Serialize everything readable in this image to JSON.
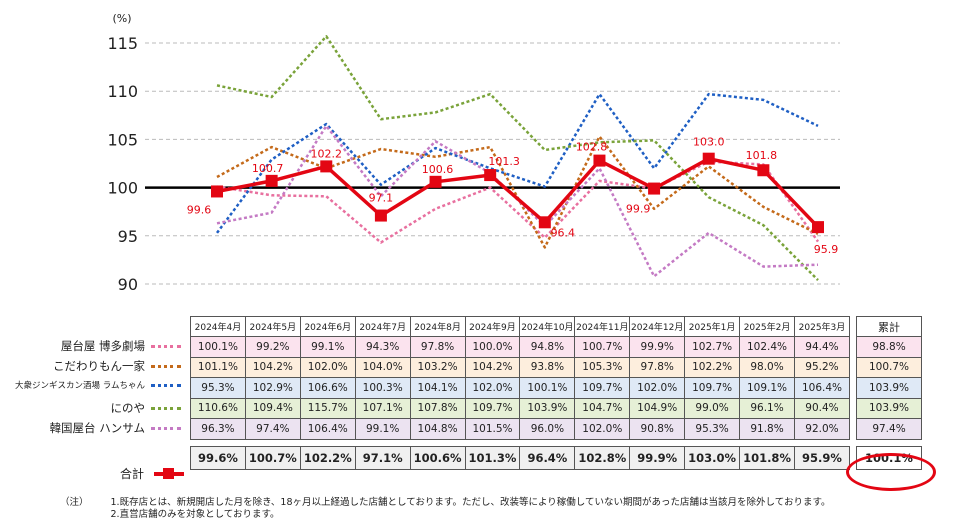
{
  "chart_data": {
    "type": "line",
    "ylabel_unit": "(%)",
    "ylim": [
      90,
      115
    ],
    "yticks": [
      90,
      95,
      100,
      105,
      110,
      115
    ],
    "baseline": 100,
    "categories": [
      "2024年4月",
      "2024年5月",
      "2024年6月",
      "2024年7月",
      "2024年8月",
      "2024年9月",
      "2024年10月",
      "2024年11月",
      "2024年12月",
      "2025年1月",
      "2025年2月",
      "2025年3月"
    ],
    "series": [
      {
        "name": "屋台屋 博多劇場",
        "color": "#e8709f",
        "style": "dotted",
        "values": [
          100.1,
          99.2,
          99.1,
          94.3,
          97.8,
          100.0,
          94.8,
          100.7,
          99.9,
          102.7,
          102.4,
          94.4
        ]
      },
      {
        "name": "こだわりもん一家",
        "color": "#c46a1a",
        "style": "dotted",
        "values": [
          101.1,
          104.2,
          102.0,
          104.0,
          103.2,
          104.2,
          93.8,
          105.3,
          97.8,
          102.2,
          98.0,
          95.2
        ]
      },
      {
        "name": "大衆ジンギスカン酒場 ラムちゃん",
        "color": "#1f5fc4",
        "style": "dotted",
        "values": [
          95.3,
          102.9,
          106.6,
          100.3,
          104.1,
          102.0,
          100.1,
          109.7,
          102.0,
          109.7,
          109.1,
          106.4
        ]
      },
      {
        "name": "にのや",
        "color": "#7aa33a",
        "style": "dotted",
        "values": [
          110.6,
          109.4,
          115.7,
          107.1,
          107.8,
          109.7,
          103.9,
          104.7,
          104.9,
          99.0,
          96.1,
          90.4
        ]
      },
      {
        "name": "韓国屋台 ハンサム",
        "color": "#c47ac4",
        "style": "dotted",
        "values": [
          96.3,
          97.4,
          106.4,
          99.1,
          104.8,
          101.5,
          96.0,
          102.0,
          90.8,
          95.3,
          91.8,
          92.0
        ]
      },
      {
        "name": "合計",
        "color": "#e30613",
        "style": "solid",
        "values": [
          99.6,
          100.7,
          102.2,
          97.1,
          100.6,
          101.3,
          96.4,
          102.8,
          99.9,
          103.0,
          101.8,
          95.9
        ]
      }
    ],
    "total_point_labels": [
      "99.6",
      "100.7",
      "102.2",
      "97.1",
      "100.6",
      "101.3",
      "96.4",
      "102.8",
      "99.9",
      "103.0",
      "101.8",
      "95.9"
    ]
  },
  "table": {
    "header": [
      "2024年4月",
      "2024年5月",
      "2024年6月",
      "2024年7月",
      "2024年8月",
      "2024年9月",
      "2024年10月",
      "2024年11月",
      "2024年12月",
      "2025年1月",
      "2025年2月",
      "2025年3月"
    ],
    "cum_header": "累計",
    "rows": [
      {
        "label": "屋台屋 博多劇場",
        "bg": "#fbe3ee",
        "cells": [
          "100.1%",
          "99.2%",
          "99.1%",
          "94.3%",
          "97.8%",
          "100.0%",
          "94.8%",
          "100.7%",
          "99.9%",
          "102.7%",
          "102.4%",
          "94.4%"
        ],
        "cum": "98.8%"
      },
      {
        "label": "こだわりもん一家",
        "bg": "#fdeedd",
        "cells": [
          "101.1%",
          "104.2%",
          "102.0%",
          "104.0%",
          "103.2%",
          "104.2%",
          "93.8%",
          "105.3%",
          "97.8%",
          "102.2%",
          "98.0%",
          "95.2%"
        ],
        "cum": "100.7%"
      },
      {
        "label": "大衆ジンギスカン酒場 ラムちゃん",
        "bg": "#dfe9f6",
        "cells": [
          "95.3%",
          "102.9%",
          "106.6%",
          "100.3%",
          "104.1%",
          "102.0%",
          "100.1%",
          "109.7%",
          "102.0%",
          "109.7%",
          "109.1%",
          "106.4%"
        ],
        "cum": "103.9%"
      },
      {
        "label": "にのや",
        "bg": "#e6f0d6",
        "cells": [
          "110.6%",
          "109.4%",
          "115.7%",
          "107.1%",
          "107.8%",
          "109.7%",
          "103.9%",
          "104.7%",
          "104.9%",
          "99.0%",
          "96.1%",
          "90.4%"
        ],
        "cum": "103.9%"
      },
      {
        "label": "韓国屋台 ハンサム",
        "bg": "#ece3f1",
        "cells": [
          "96.3%",
          "97.4%",
          "106.4%",
          "99.1%",
          "104.8%",
          "101.5%",
          "96.0%",
          "102.0%",
          "90.8%",
          "95.3%",
          "91.8%",
          "92.0%"
        ],
        "cum": "97.4%"
      }
    ],
    "total": {
      "label": "合計",
      "cells": [
        "99.6%",
        "100.7%",
        "102.2%",
        "97.1%",
        "100.6%",
        "101.3%",
        "96.4%",
        "102.8%",
        "99.9%",
        "103.0%",
        "101.8%",
        "95.9%"
      ],
      "cum": "100.1%"
    }
  },
  "notes": {
    "prefix": "（注）",
    "lines": [
      "1.既存店とは、新規開店した月を除き、18ヶ月以上経過した店舗としております。ただし、改装等により稼働していない期間があった店舗は当該月を除外しております。",
      "2.直営店舗のみを対象としております。"
    ]
  }
}
